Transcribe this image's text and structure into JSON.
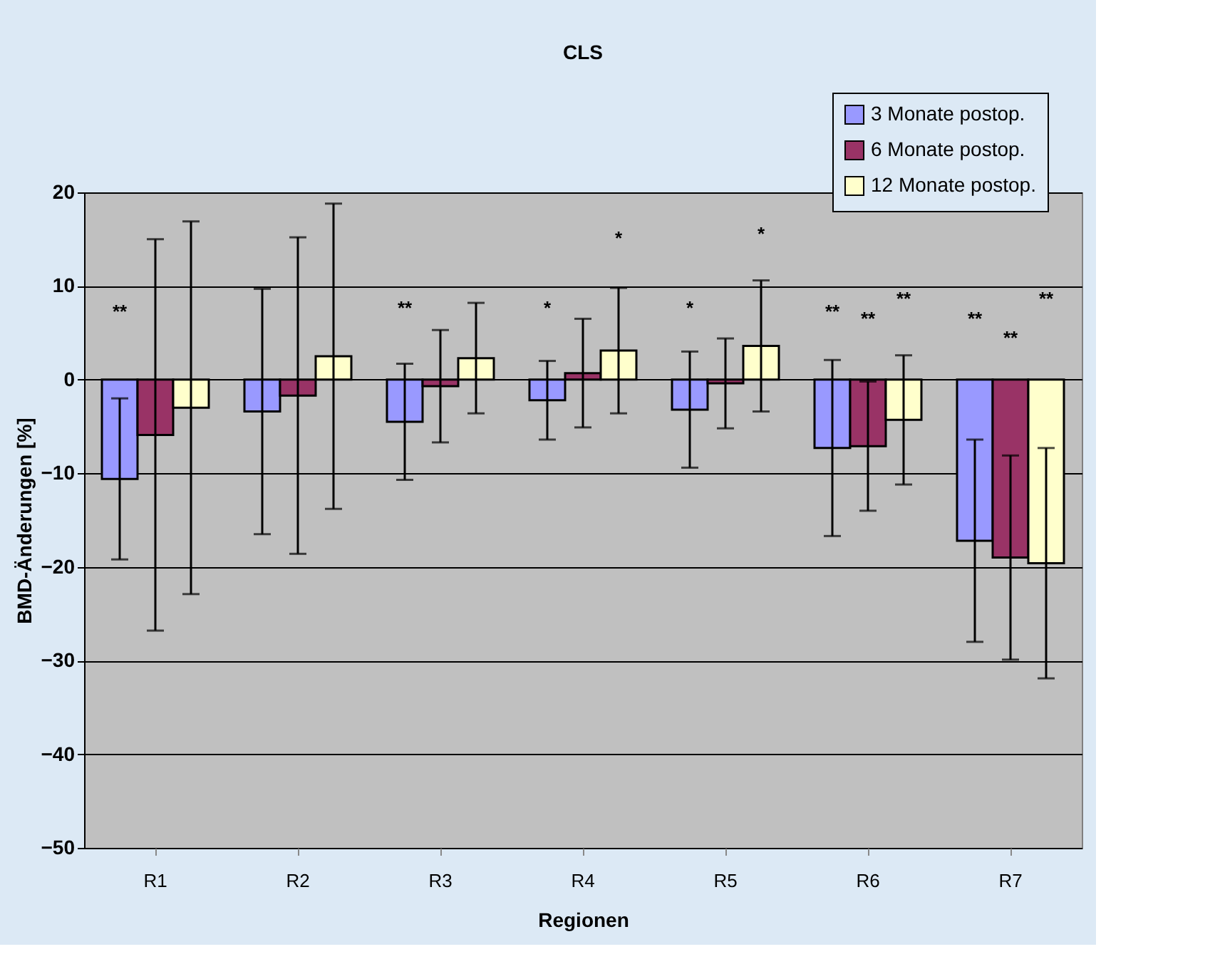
{
  "chart_data": {
    "type": "bar",
    "title": "CLS",
    "xlabel": "Regionen",
    "ylabel": "BMD-Änderungen [%]",
    "categories": [
      "R1",
      "R2",
      "R3",
      "R4",
      "R5",
      "R6",
      "R7"
    ],
    "series": [
      {
        "name": "3 Monate postop.",
        "color": "#9999ff",
        "values": [
          -10.6,
          -3.4,
          -4.5,
          -2.2,
          -3.2,
          -7.3,
          -17.2
        ],
        "errors": [
          8.6,
          13.1,
          6.2,
          4.2,
          6.2,
          9.4,
          10.8
        ]
      },
      {
        "name": "6 Monate postop.",
        "color": "#993366",
        "values": [
          -5.9,
          -1.7,
          -0.7,
          0.7,
          -0.4,
          -7.1,
          -19.0
        ],
        "errors": [
          20.9,
          16.9,
          6.0,
          5.8,
          4.8,
          6.9,
          10.9
        ]
      },
      {
        "name": "12 Monate postop.",
        "color": "#ffffcc",
        "values": [
          -3.0,
          2.5,
          2.3,
          3.1,
          3.6,
          -4.3,
          -19.6
        ],
        "errors": [
          19.9,
          16.3,
          5.9,
          6.7,
          7.0,
          6.9,
          12.3
        ]
      }
    ],
    "ylim": [
      -50,
      20
    ],
    "yticks": [
      -50,
      -40,
      -30,
      -20,
      -10,
      0,
      10,
      20
    ],
    "grid": "y",
    "legend": "top right",
    "annotations": [
      "**",
      "**",
      "*",
      "*",
      "*",
      "*",
      "**",
      "**",
      "**",
      "**",
      "**",
      "**"
    ]
  }
}
